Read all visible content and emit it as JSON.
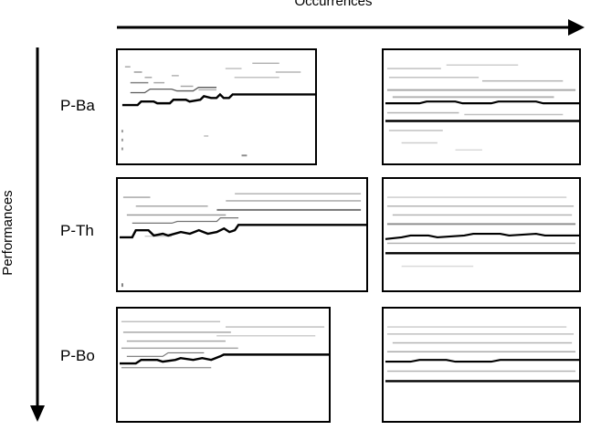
{
  "axes": {
    "horizontal_label": "Occurrences",
    "vertical_label": "Performances"
  },
  "rows": [
    {
      "label": "P-Ba"
    },
    {
      "label": "P-Th"
    },
    {
      "label": "P-Bo"
    }
  ],
  "colors": {
    "ink": "#000000",
    "background": "#ffffff"
  }
}
